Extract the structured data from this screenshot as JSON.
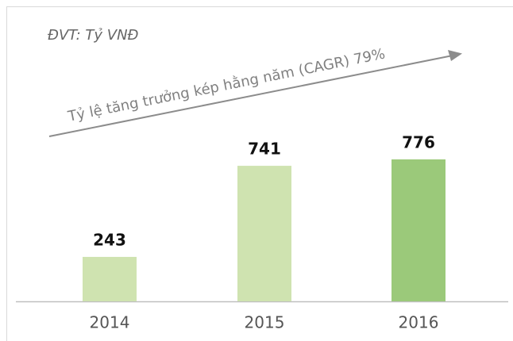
{
  "chart_data": {
    "type": "bar",
    "subtitle": "ĐVT: Tỷ VNĐ",
    "annotation": "Tỷ lệ tăng trưởng kép hằng năm (CAGR) 79%",
    "categories": [
      "2014",
      "2015",
      "2016"
    ],
    "values": [
      243,
      741,
      776
    ],
    "colors": [
      "#cfe3b0",
      "#cfe3b0",
      "#9bc97a"
    ]
  }
}
